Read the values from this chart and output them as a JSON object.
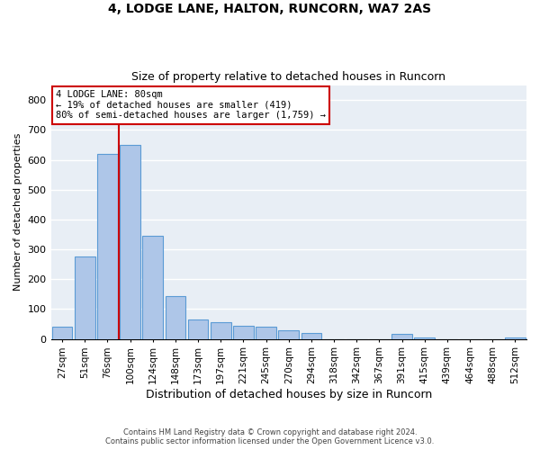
{
  "title1": "4, LODGE LANE, HALTON, RUNCORN, WA7 2AS",
  "title2": "Size of property relative to detached houses in Runcorn",
  "xlabel": "Distribution of detached houses by size in Runcorn",
  "ylabel": "Number of detached properties",
  "categories": [
    "27sqm",
    "51sqm",
    "76sqm",
    "100sqm",
    "124sqm",
    "148sqm",
    "173sqm",
    "197sqm",
    "221sqm",
    "245sqm",
    "270sqm",
    "294sqm",
    "318sqm",
    "342sqm",
    "367sqm",
    "391sqm",
    "415sqm",
    "439sqm",
    "464sqm",
    "488sqm",
    "512sqm"
  ],
  "values": [
    40,
    275,
    620,
    650,
    345,
    145,
    65,
    55,
    45,
    40,
    30,
    20,
    0,
    0,
    0,
    18,
    5,
    0,
    0,
    0,
    5
  ],
  "bar_color": "#aec6e8",
  "bar_edge_color": "#5b9bd5",
  "plot_bg_color": "#e8eef5",
  "annotation_line1": "4 LODGE LANE: 80sqm",
  "annotation_line2": "← 19% of detached houses are smaller (419)",
  "annotation_line3": "80% of semi-detached houses are larger (1,759) →",
  "vline_color": "#cc0000",
  "ann_box_edge_color": "#cc0000",
  "ylim": [
    0,
    850
  ],
  "yticks": [
    0,
    100,
    200,
    300,
    400,
    500,
    600,
    700,
    800
  ],
  "footer1": "Contains HM Land Registry data © Crown copyright and database right 2024.",
  "footer2": "Contains public sector information licensed under the Open Government Licence v3.0."
}
